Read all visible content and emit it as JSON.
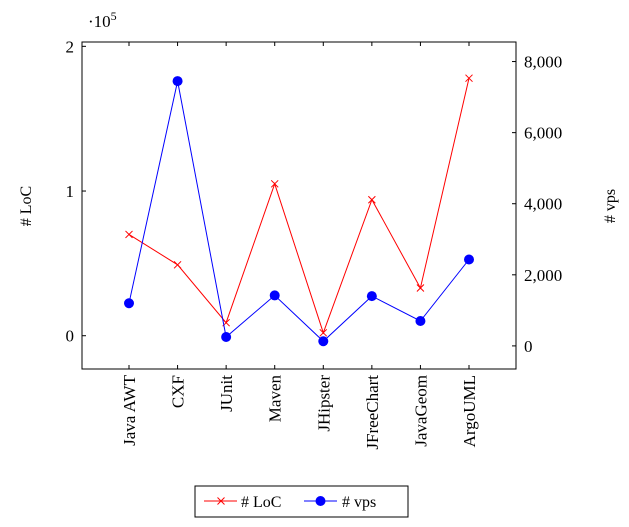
{
  "chart_data": {
    "type": "line",
    "categories": [
      "Java AWT",
      "CXF",
      "JUnit",
      "Maven",
      "JHipster",
      "JFreeChart",
      "JavaGeom",
      "ArgoUML"
    ],
    "series": [
      {
        "name": "# LoC",
        "axis": "left",
        "color": "#ff0000",
        "marker": "cross",
        "values": [
          70000,
          49000,
          9000,
          105000,
          2000,
          94000,
          33000,
          178000
        ]
      },
      {
        "name": "# vps",
        "axis": "right",
        "color": "#0000ff",
        "marker": "circle",
        "values": [
          1200,
          7450,
          250,
          1420,
          130,
          1400,
          700,
          2430
        ]
      }
    ],
    "y_left": {
      "label": "# LoC",
      "range": [
        -23000,
        203000
      ],
      "ticks": [
        0,
        1,
        2
      ],
      "tick_labels": [
        "0",
        "1",
        "2"
      ],
      "tick_scale": 100000,
      "scale_label_base": "·10",
      "scale_label_exp": "5"
    },
    "y_right": {
      "label": "# vps",
      "range": [
        -650,
        8550
      ],
      "ticks": [
        0,
        2000,
        4000,
        6000,
        8000
      ],
      "tick_labels": [
        "0",
        "2,000",
        "4,000",
        "6,000",
        "8,000"
      ]
    },
    "xlabel": "",
    "grid": false,
    "legend_position": "bottom-center"
  }
}
